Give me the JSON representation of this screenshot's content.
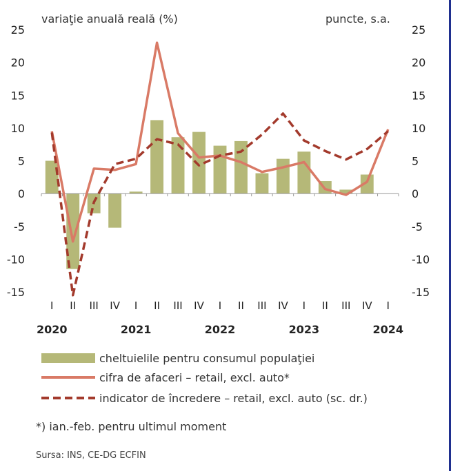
{
  "chart_data": {
    "type": "bar+line",
    "left_unit": "variaţie anuală reală (%)",
    "right_unit": "puncte, s.a.",
    "ylim_left": [
      -15,
      25
    ],
    "ylim_right": [
      -15,
      25
    ],
    "y_ticks": [
      "25",
      "20",
      "15",
      "10",
      "5",
      "0",
      "-5",
      "-10",
      "-15"
    ],
    "categories": [
      "I",
      "II",
      "III",
      "IV",
      "I",
      "II",
      "III",
      "IV",
      "I",
      "II",
      "III",
      "IV",
      "I",
      "II",
      "III",
      "IV",
      "I"
    ],
    "years": [
      "2020",
      "2021",
      "2022",
      "2023",
      "2024"
    ],
    "series": [
      {
        "name": "cheltuielile pentru consumul populaţiei",
        "kind": "bar",
        "color": "#b5b878",
        "values": [
          5.0,
          -11.5,
          -3.0,
          -5.2,
          0.3,
          11.2,
          8.6,
          9.4,
          7.3,
          8.0,
          3.1,
          5.3,
          6.4,
          1.9,
          0.6,
          2.9,
          null
        ]
      },
      {
        "name": "cifra de afaceri – retail, excl. auto*",
        "kind": "line",
        "color": "#d97a66",
        "values": [
          9.5,
          -7.3,
          3.8,
          3.6,
          4.5,
          23.0,
          9.2,
          5.5,
          5.8,
          4.8,
          3.3,
          4.0,
          4.8,
          0.7,
          -0.2,
          1.8,
          9.8
        ]
      },
      {
        "name": "indicator de încredere – retail, excl. auto (sc. dr.)",
        "kind": "dashed-line",
        "color": "#a33a2c",
        "values": [
          9.3,
          -15.5,
          -1.3,
          4.5,
          5.3,
          8.3,
          7.5,
          4.3,
          5.8,
          6.4,
          9.0,
          12.2,
          8.1,
          6.5,
          5.2,
          6.8,
          9.5
        ]
      }
    ]
  },
  "note": "*) ian.-feb. pentru ultimul moment",
  "source": "Sursa: INS, CE-DG ECFIN"
}
